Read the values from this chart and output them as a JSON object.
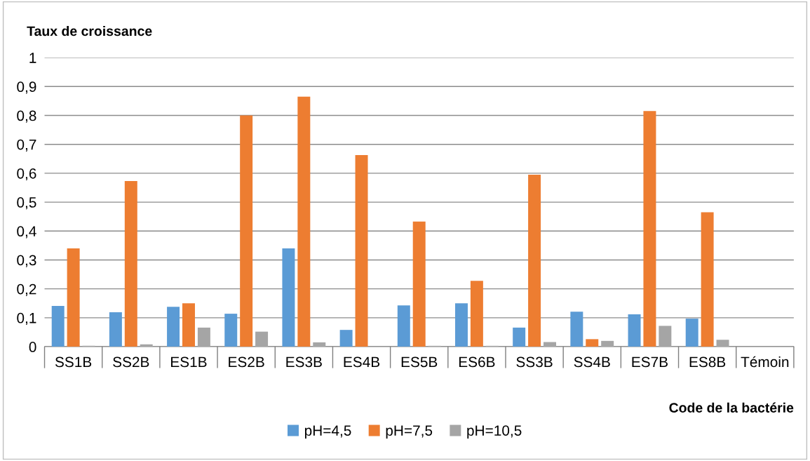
{
  "chart_data": {
    "type": "bar",
    "ylabel": "Taux de croissance",
    "xlabel": "Code de la bactérie",
    "categories": [
      "SS1B",
      "SS2B",
      "ES1B",
      "ES2B",
      "ES3B",
      "ES4B",
      "ES5B",
      "ES6B",
      "SS3B",
      "SS4B",
      "ES7B",
      "ES8B",
      "Témoin"
    ],
    "series": [
      {
        "name": "pH=4,5",
        "color": "#5b9bd5",
        "values": [
          0.141,
          0.119,
          0.138,
          0.114,
          0.34,
          0.058,
          0.143,
          0.15,
          0.066,
          0.121,
          0.112,
          0.097,
          0
        ]
      },
      {
        "name": "pH=7,5",
        "color": "#ed7d31",
        "values": [
          0.34,
          0.573,
          0.15,
          0.8,
          0.865,
          0.663,
          0.433,
          0.228,
          0.595,
          0.026,
          0.815,
          0.465,
          0
        ]
      },
      {
        "name": "pH=10,5",
        "color": "#a5a5a5",
        "values": [
          0.003,
          0.008,
          0.066,
          0.052,
          0.015,
          0,
          0.003,
          0.003,
          0.016,
          0.02,
          0.072,
          0.024,
          0
        ]
      }
    ],
    "ylim": [
      0,
      1
    ],
    "yticks": [
      0,
      {
        "value": 0.1,
        "label": "0,1"
      },
      {
        "value": 0.2,
        "label": "0,2"
      },
      {
        "value": 0.3,
        "label": "0,3"
      },
      {
        "value": 0.4,
        "label": "0,4"
      },
      {
        "value": 0.5,
        "label": "0,5"
      },
      {
        "value": 0.6,
        "label": "0,6"
      },
      {
        "value": 0.7,
        "label": "0,7"
      },
      {
        "value": 0.8,
        "label": "0,8"
      },
      {
        "value": 0.9,
        "label": "0,9"
      },
      1
    ],
    "grid": "y",
    "legend": "bottom"
  }
}
